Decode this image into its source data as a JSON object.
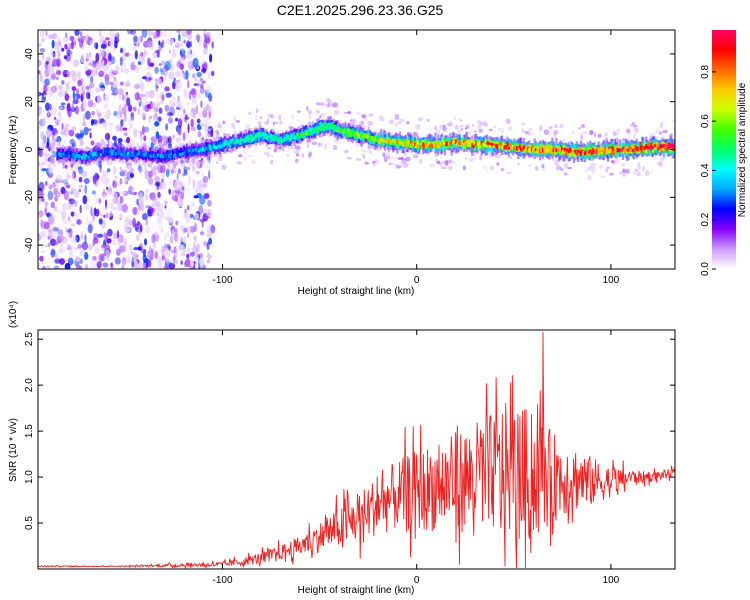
{
  "title": "C2E1.2025.296.23.36.G25",
  "chart_data": [
    {
      "type": "heatmap",
      "name": "spectrogram",
      "xlabel": "Height of straight line (km)",
      "ylabel": "Frequency (Hz)",
      "xlim": [
        -195,
        133
      ],
      "ylim": [
        -50,
        50
      ],
      "x_ticks": [
        -100,
        0,
        100
      ],
      "x_tick_labels": [
        "-100",
        "0",
        "100"
      ],
      "y_ticks": [
        -40,
        -20,
        0,
        20,
        40
      ],
      "y_tick_labels": [
        "-40",
        "-20",
        "0",
        "20",
        "40"
      ],
      "ridge": {
        "x": [
          -180,
          -170,
          -160,
          -150,
          -140,
          -130,
          -120,
          -110,
          -100,
          -90,
          -80,
          -70,
          -60,
          -50,
          -45,
          -40,
          -30,
          -20,
          -10,
          0,
          10,
          20,
          30,
          40,
          50,
          60,
          70,
          80,
          90,
          100,
          110,
          120,
          133
        ],
        "freq": [
          -2,
          -3,
          -1,
          -2,
          -2,
          -3,
          -1,
          0,
          2,
          4,
          6,
          4,
          6,
          9,
          10,
          8,
          6,
          4,
          3,
          2,
          2,
          3,
          2,
          2,
          1,
          0,
          0,
          -1,
          -1,
          0,
          0,
          1,
          1
        ],
        "amplitude": [
          0.3,
          0.35,
          0.3,
          0.35,
          0.3,
          0.3,
          0.3,
          0.35,
          0.4,
          0.45,
          0.5,
          0.45,
          0.5,
          0.55,
          0.55,
          0.6,
          0.6,
          0.65,
          0.7,
          0.75,
          0.75,
          0.8,
          0.8,
          0.8,
          0.82,
          0.85,
          0.85,
          0.85,
          0.85,
          0.9,
          0.9,
          0.95,
          1.0
        ]
      },
      "noise_region_x": [
        -195,
        -105
      ],
      "colorbar": {
        "label": "Normalized spectral amplitude",
        "range": [
          0,
          0.97
        ],
        "ticks": [
          0.0,
          0.2,
          0.4,
          0.6,
          0.8
        ],
        "tick_labels": [
          "0.0",
          "0.2",
          "0.4",
          "0.6",
          "0.8"
        ],
        "colors": [
          "#ffffff",
          "#cc99ff",
          "#8800ff",
          "#0000ff",
          "#00aaff",
          "#00ffff",
          "#00ff66",
          "#44ff00",
          "#ccff00",
          "#ffcc00",
          "#ff6600",
          "#ff0000",
          "#ff0066"
        ]
      }
    },
    {
      "type": "line",
      "name": "snr",
      "xlabel": "Height of straight line (km)",
      "ylabel": "SNR (10 * v/v)",
      "yscale_label": "(x10⁴)",
      "xlim": [
        -195,
        133
      ],
      "ylim": [
        0,
        2.6
      ],
      "x_ticks": [
        -100,
        0,
        100
      ],
      "x_tick_labels": [
        "-100",
        "0",
        "100"
      ],
      "y_ticks": [
        0.5,
        1.0,
        1.5,
        2.0,
        2.5
      ],
      "y_tick_labels": [
        "0.5",
        "1.0",
        "1.5",
        "2.0",
        "2.5"
      ],
      "line_color": "#ee2222",
      "envelope": {
        "x": [
          -195,
          -150,
          -100,
          -90,
          -80,
          -70,
          -60,
          -50,
          -40,
          -30,
          -20,
          -10,
          0,
          10,
          20,
          30,
          40,
          45,
          50,
          55,
          60,
          65,
          70,
          80,
          90,
          100,
          110,
          120,
          133
        ],
        "baseline": [
          0.03,
          0.03,
          0.05,
          0.08,
          0.12,
          0.18,
          0.25,
          0.35,
          0.45,
          0.55,
          0.7,
          0.8,
          0.85,
          0.9,
          0.95,
          1.0,
          1.05,
          1.1,
          1.05,
          1.0,
          1.0,
          1.0,
          1.0,
          1.0,
          0.95,
          0.95,
          1.0,
          1.0,
          1.05
        ],
        "amplitude": [
          0.01,
          0.01,
          0.05,
          0.08,
          0.12,
          0.15,
          0.2,
          0.3,
          0.4,
          0.5,
          0.6,
          0.7,
          0.8,
          0.9,
          1.0,
          1.1,
          1.2,
          1.3,
          1.3,
          1.4,
          1.3,
          1.1,
          0.9,
          0.7,
          0.5,
          0.3,
          0.15,
          0.1,
          0.08
        ]
      },
      "peak": {
        "x": 65,
        "y": 2.58
      }
    }
  ]
}
